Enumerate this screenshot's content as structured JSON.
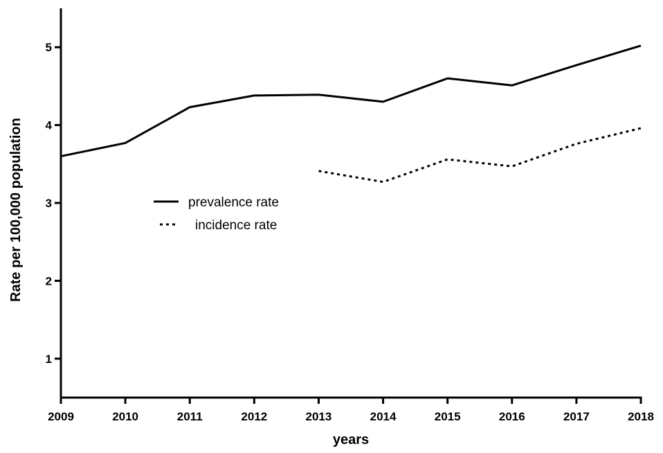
{
  "chart_data": {
    "type": "line",
    "title": "",
    "xlabel": "years",
    "ylabel": "Rate per 100,000 population",
    "x": [
      2009,
      2010,
      2011,
      2012,
      2013,
      2014,
      2015,
      2016,
      2017,
      2018
    ],
    "x_tick_labels": [
      "2009",
      "2010",
      "2011",
      "2012",
      "2013",
      "2014",
      "2015",
      "2016",
      "2017",
      "2018"
    ],
    "y_tick_labels": [
      "1",
      "2",
      "3",
      "4",
      "5"
    ],
    "y_ticks": [
      1,
      2,
      3,
      4,
      5
    ],
    "xlim": [
      2009,
      2018
    ],
    "ylim": [
      0.5,
      5.5
    ],
    "grid": false,
    "legend_position": "center-left",
    "series": [
      {
        "name": "prevalence rate",
        "style": "solid",
        "color": "#000000",
        "x": [
          2009,
          2010,
          2011,
          2012,
          2013,
          2014,
          2015,
          2016,
          2017,
          2018
        ],
        "values": [
          3.6,
          3.77,
          4.23,
          4.38,
          4.39,
          4.3,
          4.6,
          4.51,
          4.77,
          5.02
        ]
      },
      {
        "name": "incidence rate",
        "style": "dotted",
        "color": "#000000",
        "x": [
          2013,
          2014,
          2015,
          2016,
          2017,
          2018
        ],
        "values": [
          3.41,
          3.27,
          3.56,
          3.47,
          3.76,
          3.96
        ]
      }
    ]
  }
}
